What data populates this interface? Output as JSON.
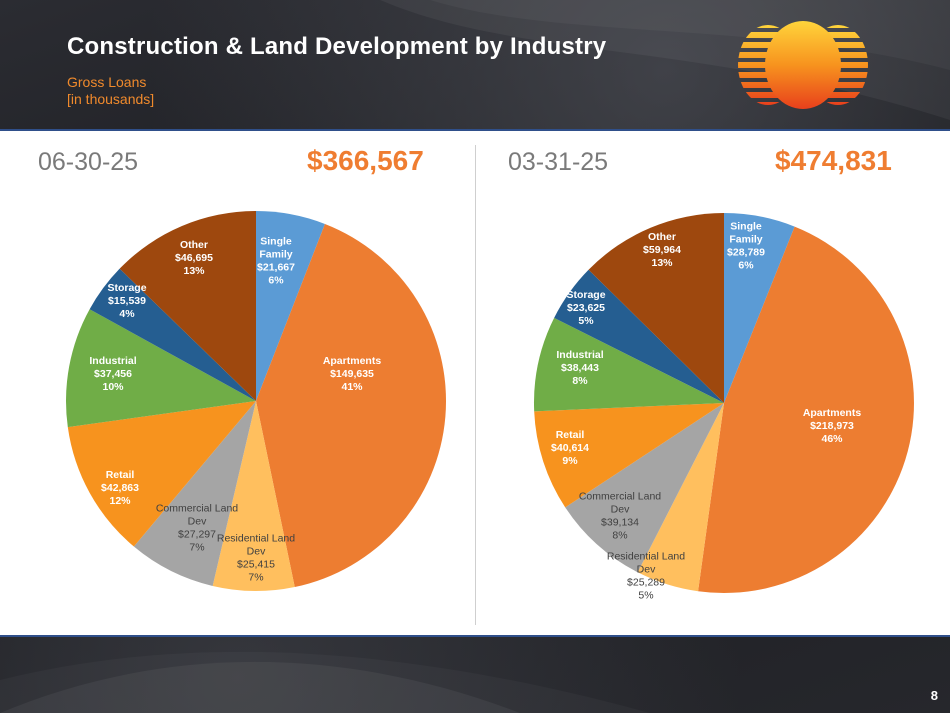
{
  "slide": {
    "title": "Construction & Land Development by Industry",
    "subtitle_line1": "Gross Loans",
    "subtitle_line2": "[in thousands]",
    "page_number": "8",
    "panel_border_color": "#2f4f8a",
    "logo_gradient": [
      "#ffd43b",
      "#f7931e",
      "#e8401c"
    ]
  },
  "chart_data": [
    {
      "type": "pie",
      "date_label": "06-30-25",
      "total_label": "$366,567",
      "slices": [
        {
          "lines": [
            "Single",
            "Family",
            "$21,667",
            "6%"
          ],
          "value": 21667,
          "color": "#5b9bd5",
          "label_color": "#ffffff",
          "bold": true
        },
        {
          "lines": [
            "Apartments",
            "$149,635",
            "41%"
          ],
          "value": 149635,
          "color": "#ed7d31",
          "label_color": "#ffffff",
          "bold": true
        },
        {
          "lines": [
            "Residential Land",
            "Dev",
            "$25,415",
            "7%"
          ],
          "value": 25415,
          "color": "#ffbf5e",
          "label_color": "#404040",
          "bold": false
        },
        {
          "lines": [
            "Commercial Land",
            "Dev",
            "$27,297",
            "7%"
          ],
          "value": 27297,
          "color": "#a5a5a5",
          "label_color": "#404040",
          "bold": false
        },
        {
          "lines": [
            "Retail",
            "$42,863",
            "12%"
          ],
          "value": 42863,
          "color": "#f7931e",
          "label_color": "#ffffff",
          "bold": true
        },
        {
          "lines": [
            "Industrial",
            "$37,456",
            "10%"
          ],
          "value": 37456,
          "color": "#70ad47",
          "label_color": "#ffffff",
          "bold": true
        },
        {
          "lines": [
            "Storage",
            "$15,539",
            "4%"
          ],
          "value": 15539,
          "color": "#255e91",
          "label_color": "#ffffff",
          "bold": true
        },
        {
          "lines": [
            "Other",
            "$46,695",
            "13%"
          ],
          "value": 46695,
          "color": "#9e480e",
          "label_color": "#ffffff",
          "bold": true
        }
      ]
    },
    {
      "type": "pie",
      "date_label": "03-31-25",
      "total_label": "$474,831",
      "slices": [
        {
          "lines": [
            "Single",
            "Family",
            "$28,789",
            "6%"
          ],
          "value": 28789,
          "color": "#5b9bd5",
          "label_color": "#ffffff",
          "bold": true
        },
        {
          "lines": [
            "Apartments",
            "$218,973",
            "46%"
          ],
          "value": 218973,
          "color": "#ed7d31",
          "label_color": "#ffffff",
          "bold": true
        },
        {
          "lines": [
            "Residential Land",
            "Dev",
            "$25,289",
            "5%"
          ],
          "value": 25289,
          "color": "#ffbf5e",
          "label_color": "#404040",
          "bold": false
        },
        {
          "lines": [
            "Commercial Land",
            "Dev",
            "$39,134",
            "8%"
          ],
          "value": 39134,
          "color": "#a5a5a5",
          "label_color": "#404040",
          "bold": false
        },
        {
          "lines": [
            "Retail",
            "$40,614",
            "9%"
          ],
          "value": 40614,
          "color": "#f7931e",
          "label_color": "#ffffff",
          "bold": true
        },
        {
          "lines": [
            "Industrial",
            "$38,443",
            "8%"
          ],
          "value": 38443,
          "color": "#70ad47",
          "label_color": "#ffffff",
          "bold": true
        },
        {
          "lines": [
            "Storage",
            "$23,625",
            "5%"
          ],
          "value": 23625,
          "color": "#255e91",
          "label_color": "#ffffff",
          "bold": true
        },
        {
          "lines": [
            "Other",
            "$59,964",
            "13%"
          ],
          "value": 59964,
          "color": "#9e480e",
          "label_color": "#ffffff",
          "bold": true
        }
      ]
    }
  ]
}
